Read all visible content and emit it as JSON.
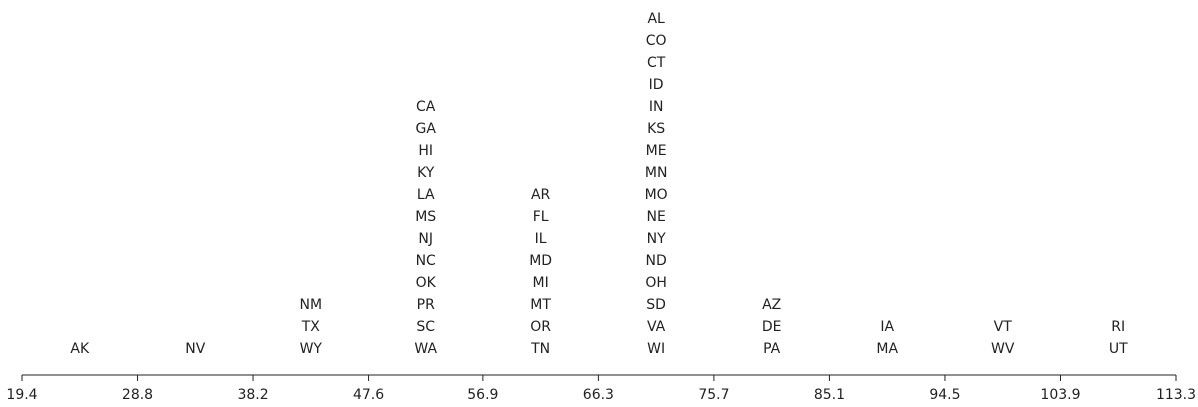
{
  "chart_data": {
    "type": "label-histogram",
    "xlim": [
      19.4,
      113.3
    ],
    "xticks": [
      19.4,
      28.8,
      38.2,
      47.6,
      56.9,
      66.3,
      75.7,
      85.1,
      94.5,
      103.9,
      113.3
    ],
    "bins": [
      19.4,
      28.8,
      38.2,
      47.6,
      56.9,
      66.3,
      75.7,
      85.1,
      94.5,
      103.9,
      113.3
    ],
    "groups": [
      [
        "AK"
      ],
      [
        "NV"
      ],
      [
        "NM",
        "TX",
        "WY"
      ],
      [
        "CA",
        "GA",
        "HI",
        "KY",
        "LA",
        "MS",
        "NJ",
        "NC",
        "OK",
        "PR",
        "SC",
        "WA"
      ],
      [
        "AR",
        "FL",
        "IL",
        "MD",
        "MI",
        "MT",
        "OR",
        "TN"
      ],
      [
        "AL",
        "CO",
        "CT",
        "ID",
        "IN",
        "KS",
        "ME",
        "MN",
        "MO",
        "NE",
        "NY",
        "ND",
        "OH",
        "SD",
        "VA",
        "WI"
      ],
      [
        "AZ",
        "DE",
        "PA"
      ],
      [
        "IA",
        "MA"
      ],
      [
        "VT",
        "WV"
      ],
      [
        "RI",
        "UT"
      ]
    ],
    "color": "#222222"
  }
}
